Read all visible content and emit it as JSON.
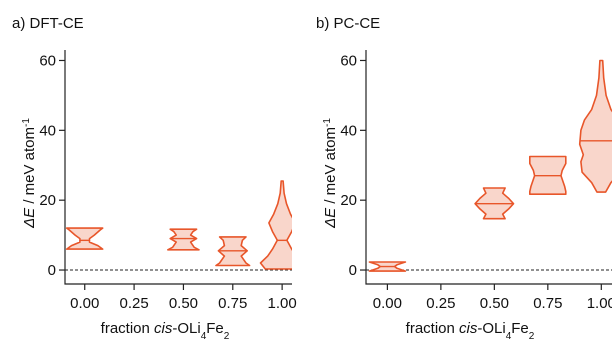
{
  "colors": {
    "violin_stroke": "#e8562a",
    "violin_fill": "#f9d6cb",
    "axis": "#222222"
  },
  "chart_data": [
    {
      "type": "violin",
      "panel_label": "a) DFT-CE",
      "ylabel": "ΔE / meV atom⁻¹",
      "ylabel_parts": {
        "symbol": "ΔE",
        "unit": " / meV atom",
        "exp": "-1"
      },
      "xlabel": "fraction cis-OLi4Fe2",
      "xlabel_parts": {
        "pre": "fraction ",
        "italic": "cis",
        "mid": "-OLi",
        "sub1": "4",
        "mid2": "Fe",
        "sub2": "2"
      },
      "xlim": [
        -0.1,
        1.05
      ],
      "ylim": [
        -4,
        63
      ],
      "x_ticks": [
        0.0,
        0.25,
        0.5,
        0.75,
        1.0
      ],
      "x_tick_labels": [
        "0.00",
        "0.25",
        "0.50",
        "0.75",
        "1.00"
      ],
      "y_ticks": [
        0,
        20,
        40,
        60
      ],
      "y_tick_labels": [
        "0",
        "20",
        "40",
        "60"
      ],
      "reference_line_y": 0,
      "violins": [
        {
          "x": 0.0,
          "median": 8.5,
          "profile": [
            [
              6.0,
              0.075
            ],
            [
              7.0,
              0.055
            ],
            [
              8.0,
              0.02
            ],
            [
              9.0,
              0.02
            ],
            [
              10.0,
              0.04
            ],
            [
              11.5,
              0.065
            ],
            [
              12.0,
              0.075
            ]
          ]
        },
        {
          "x": 0.5,
          "median": 9.0,
          "profile": [
            [
              5.8,
              0.065
            ],
            [
              6.5,
              0.045
            ],
            [
              8.0,
              0.03
            ],
            [
              9.0,
              0.055
            ],
            [
              10.0,
              0.03
            ],
            [
              11.0,
              0.04
            ],
            [
              11.7,
              0.055
            ]
          ]
        },
        {
          "x": 0.75,
          "median": 5.5,
          "profile": [
            [
              1.3,
              0.07
            ],
            [
              2.0,
              0.055
            ],
            [
              4.0,
              0.035
            ],
            [
              5.5,
              0.06
            ],
            [
              7.0,
              0.035
            ],
            [
              8.5,
              0.04
            ],
            [
              9.5,
              0.055
            ]
          ]
        },
        {
          "x": 1.0,
          "median": 8.5,
          "profile": [
            [
              0.3,
              0.07
            ],
            [
              2.0,
              0.09
            ],
            [
              4.0,
              0.06
            ],
            [
              6.0,
              0.04
            ],
            [
              8.5,
              0.02
            ],
            [
              11.0,
              0.04
            ],
            [
              13.5,
              0.055
            ],
            [
              16.0,
              0.035
            ],
            [
              19.0,
              0.018
            ],
            [
              22.0,
              0.008
            ],
            [
              25.5,
              0.004
            ]
          ]
        }
      ]
    },
    {
      "type": "violin",
      "panel_label": "b) PC-CE",
      "ylabel": "ΔE / meV atom⁻¹",
      "ylabel_parts": {
        "symbol": "ΔE",
        "unit": " / meV atom",
        "exp": "-1"
      },
      "xlabel": "fraction cis-OLi4Fe2",
      "xlabel_parts": {
        "pre": "fraction ",
        "italic": "cis",
        "mid": "-OLi",
        "sub1": "4",
        "mid2": "Fe",
        "sub2": "2"
      },
      "xlim": [
        -0.1,
        1.05
      ],
      "ylim": [
        -4,
        63
      ],
      "x_ticks": [
        0.0,
        0.25,
        0.5,
        0.75,
        1.0
      ],
      "x_tick_labels": [
        "0.00",
        "0.25",
        "0.50",
        "0.75",
        "1.00"
      ],
      "y_ticks": [
        0,
        20,
        40,
        60
      ],
      "y_tick_labels": [
        "0",
        "20",
        "40",
        "60"
      ],
      "reference_line_y": 0,
      "violins": [
        {
          "x": 0.0,
          "median": 1.0,
          "profile": [
            [
              -0.3,
              0.075
            ],
            [
              0.5,
              0.04
            ],
            [
              1.0,
              0.03
            ],
            [
              1.5,
              0.04
            ],
            [
              2.3,
              0.075
            ]
          ]
        },
        {
          "x": 0.5,
          "median": 19.0,
          "profile": [
            [
              14.7,
              0.045
            ],
            [
              16.0,
              0.035
            ],
            [
              17.5,
              0.06
            ],
            [
              19.0,
              0.08
            ],
            [
              20.5,
              0.06
            ],
            [
              22.0,
              0.035
            ],
            [
              23.5,
              0.045
            ]
          ]
        },
        {
          "x": 0.75,
          "median": 27.0,
          "profile": [
            [
              21.7,
              0.075
            ],
            [
              22.5,
              0.075
            ],
            [
              24.0,
              0.07
            ],
            [
              26.0,
              0.06
            ],
            [
              27.0,
              0.055
            ],
            [
              28.5,
              0.06
            ],
            [
              30.5,
              0.075
            ],
            [
              32.5,
              0.075
            ]
          ]
        },
        {
          "x": 1.0,
          "median": 37.0,
          "profile": [
            [
              22.3,
              0.018
            ],
            [
              25.0,
              0.04
            ],
            [
              28.0,
              0.08
            ],
            [
              31.0,
              0.085
            ],
            [
              33.0,
              0.075
            ],
            [
              36.0,
              0.09
            ],
            [
              40.0,
              0.085
            ],
            [
              43.0,
              0.07
            ],
            [
              46.0,
              0.04
            ],
            [
              50.0,
              0.02
            ],
            [
              55.0,
              0.01
            ],
            [
              60.0,
              0.006
            ]
          ]
        }
      ]
    }
  ]
}
